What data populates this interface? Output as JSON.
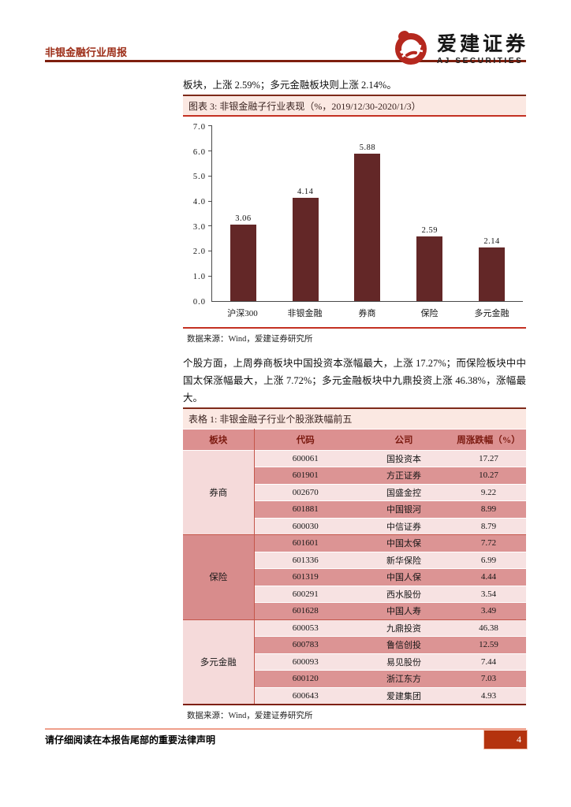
{
  "header": {
    "report_type": "非银金融行业周报",
    "brand_cn": "爱建证券",
    "brand_en": "AJ SECURITIES"
  },
  "paragraphs": {
    "p1": "板块，上涨 2.59%；多元金融板块则上涨 2.14%。",
    "p2": "个股方面，上周券商板块中国投资本涨幅最大，上涨 17.27%；而保险板块中中国太保涨幅最大，上涨 7.72%；多元金融板块中九鼎投资上涨 46.38%，涨幅最大。"
  },
  "chart": {
    "title": "图表 3: 非银金融子行业表现（%，2019/12/30-2020/1/3）",
    "source": "数据来源：Wind，爱建证券研究所"
  },
  "chart_data": {
    "type": "bar",
    "title": "非银金融子行业表现（%，2019/12/30-2020/1/3）",
    "categories": [
      "沪深300",
      "非银金融",
      "券商",
      "保险",
      "多元金融"
    ],
    "values": [
      3.06,
      4.14,
      5.88,
      2.59,
      2.14
    ],
    "value_labels": [
      "3.06",
      "4.14",
      "5.88",
      "2.59",
      "2.14"
    ],
    "xlabel": "",
    "ylabel": "",
    "ylim": [
      0,
      7
    ],
    "ytick_step": 1,
    "grid": false,
    "legend": "none",
    "bar_color": "#632727"
  },
  "table": {
    "title": "表格 1: 非银金融子行业个股涨跌幅前五",
    "columns": [
      "板块",
      "代码",
      "公司",
      "周涨跌幅（%）"
    ],
    "groups": [
      {
        "sector": "券商",
        "rows": [
          {
            "code": "600061",
            "company": "国投资本",
            "chg": "17.27"
          },
          {
            "code": "601901",
            "company": "方正证券",
            "chg": "10.27"
          },
          {
            "code": "002670",
            "company": "国盛金控",
            "chg": "9.22"
          },
          {
            "code": "601881",
            "company": "中国银河",
            "chg": "8.99"
          },
          {
            "code": "600030",
            "company": "中信证券",
            "chg": "8.79"
          }
        ]
      },
      {
        "sector": "保险",
        "rows": [
          {
            "code": "601601",
            "company": "中国太保",
            "chg": "7.72"
          },
          {
            "code": "601336",
            "company": "新华保险",
            "chg": "6.99"
          },
          {
            "code": "601319",
            "company": "中国人保",
            "chg": "4.44"
          },
          {
            "code": "600291",
            "company": "西水股份",
            "chg": "3.54"
          },
          {
            "code": "601628",
            "company": "中国人寿",
            "chg": "3.49"
          }
        ]
      },
      {
        "sector": "多元金融",
        "rows": [
          {
            "code": "600053",
            "company": "九鼎投资",
            "chg": "46.38"
          },
          {
            "code": "600783",
            "company": "鲁信创投",
            "chg": "12.59"
          },
          {
            "code": "600093",
            "company": "易见股份",
            "chg": "7.44"
          },
          {
            "code": "600120",
            "company": "浙江东方",
            "chg": "7.03"
          },
          {
            "code": "600643",
            "company": "爱建集团",
            "chg": "4.93"
          }
        ]
      }
    ],
    "source": "数据来源：Wind，爱建证券研究所"
  },
  "footer": {
    "disclaimer": "请仔细阅读在本报告尾部的重要法律声明",
    "page_number": "4"
  },
  "colors": {
    "bar": "#632727",
    "accent_red": "#c43122",
    "dark_red": "#7e1f0e",
    "title_bar_bg": "#fbe8e2",
    "table_header_bg": "#dc9090",
    "row_light": "#f7e2e2",
    "row_dark": "#dc9494",
    "badge_bg": "#b4330e",
    "logo_red": "#b5281e"
  }
}
